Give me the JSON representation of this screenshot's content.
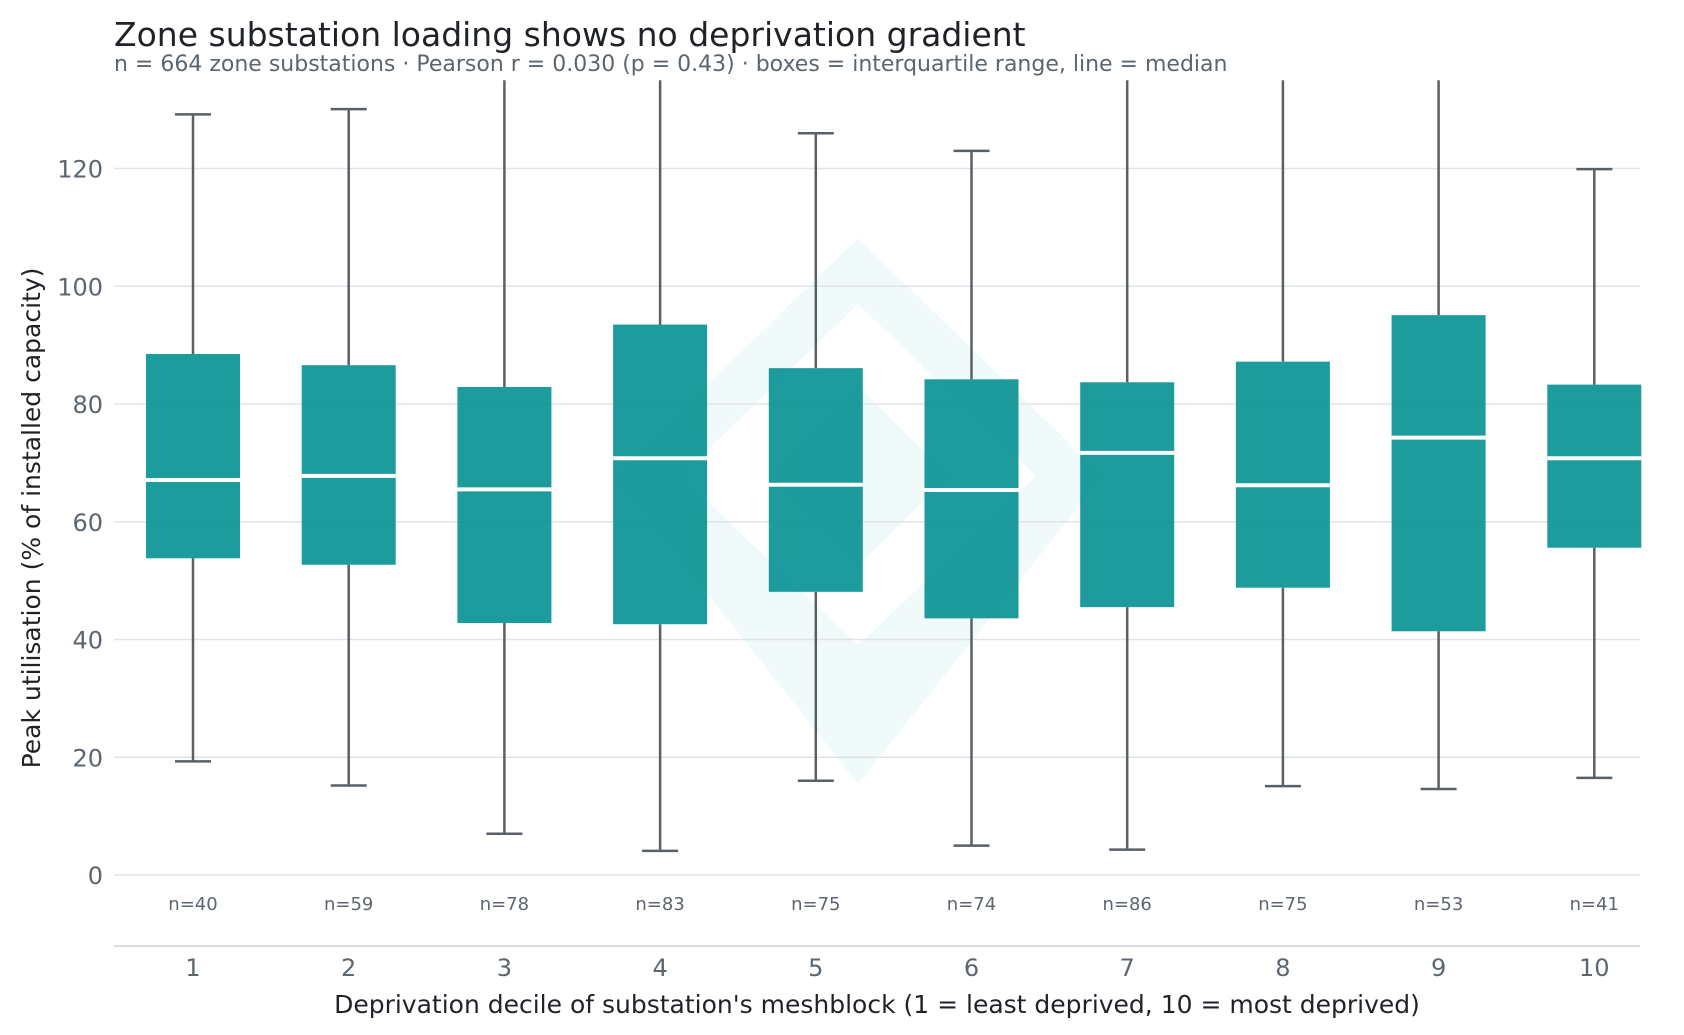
{
  "chart_data": {
    "type": "box",
    "title": "Zone substation loading shows no deprivation gradient",
    "subtitle": "n = 664 zone substations · Pearson r = 0.030 (p = 0.43) · boxes = interquartile range, line = median",
    "xlabel": "Deprivation decile of substation's meshblock (1 = least deprived, 10 = most deprived)",
    "ylabel": "Peak utilisation (% of installed capacity)",
    "ylim": [
      -12,
      135
    ],
    "yticks": [
      0,
      20,
      40,
      60,
      80,
      100,
      120
    ],
    "grid": true,
    "box_color": "#0b9294",
    "whisker_color": "#5a6068",
    "median_color": "#ffffff",
    "categories": [
      "1",
      "2",
      "3",
      "4",
      "5",
      "6",
      "7",
      "8",
      "9",
      "10"
    ],
    "counts": [
      "n=40",
      "n=59",
      "n=78",
      "n=83",
      "n=75",
      "n=74",
      "n=86",
      "n=75",
      "n=53",
      "n=41"
    ],
    "boxes": [
      {
        "whisker_low": 19.3,
        "q1": 53.8,
        "median": 67.1,
        "q3": 88.5,
        "whisker_high": 129.2
      },
      {
        "whisker_low": 15.2,
        "q1": 52.7,
        "median": 67.8,
        "q3": 86.6,
        "whisker_high": 130.1
      },
      {
        "whisker_low": 7.0,
        "q1": 42.8,
        "median": 65.5,
        "q3": 82.9,
        "whisker_high": 135
      },
      {
        "whisker_low": 4.1,
        "q1": 42.6,
        "median": 70.8,
        "q3": 93.5,
        "whisker_high": 135
      },
      {
        "whisker_low": 16.0,
        "q1": 48.1,
        "median": 66.3,
        "q3": 86.1,
        "whisker_high": 126.0
      },
      {
        "whisker_low": 5.0,
        "q1": 43.6,
        "median": 65.4,
        "q3": 84.2,
        "whisker_high": 123.0
      },
      {
        "whisker_low": 4.3,
        "q1": 45.5,
        "median": 71.7,
        "q3": 83.7,
        "whisker_high": 135
      },
      {
        "whisker_low": 15.1,
        "q1": 48.8,
        "median": 66.2,
        "q3": 87.2,
        "whisker_high": 135
      },
      {
        "whisker_low": 14.6,
        "q1": 41.4,
        "median": 74.3,
        "q3": 95.1,
        "whisker_high": 135
      },
      {
        "whisker_low": 16.5,
        "q1": 55.6,
        "median": 70.8,
        "q3": 83.3,
        "whisker_high": 119.9
      }
    ]
  }
}
